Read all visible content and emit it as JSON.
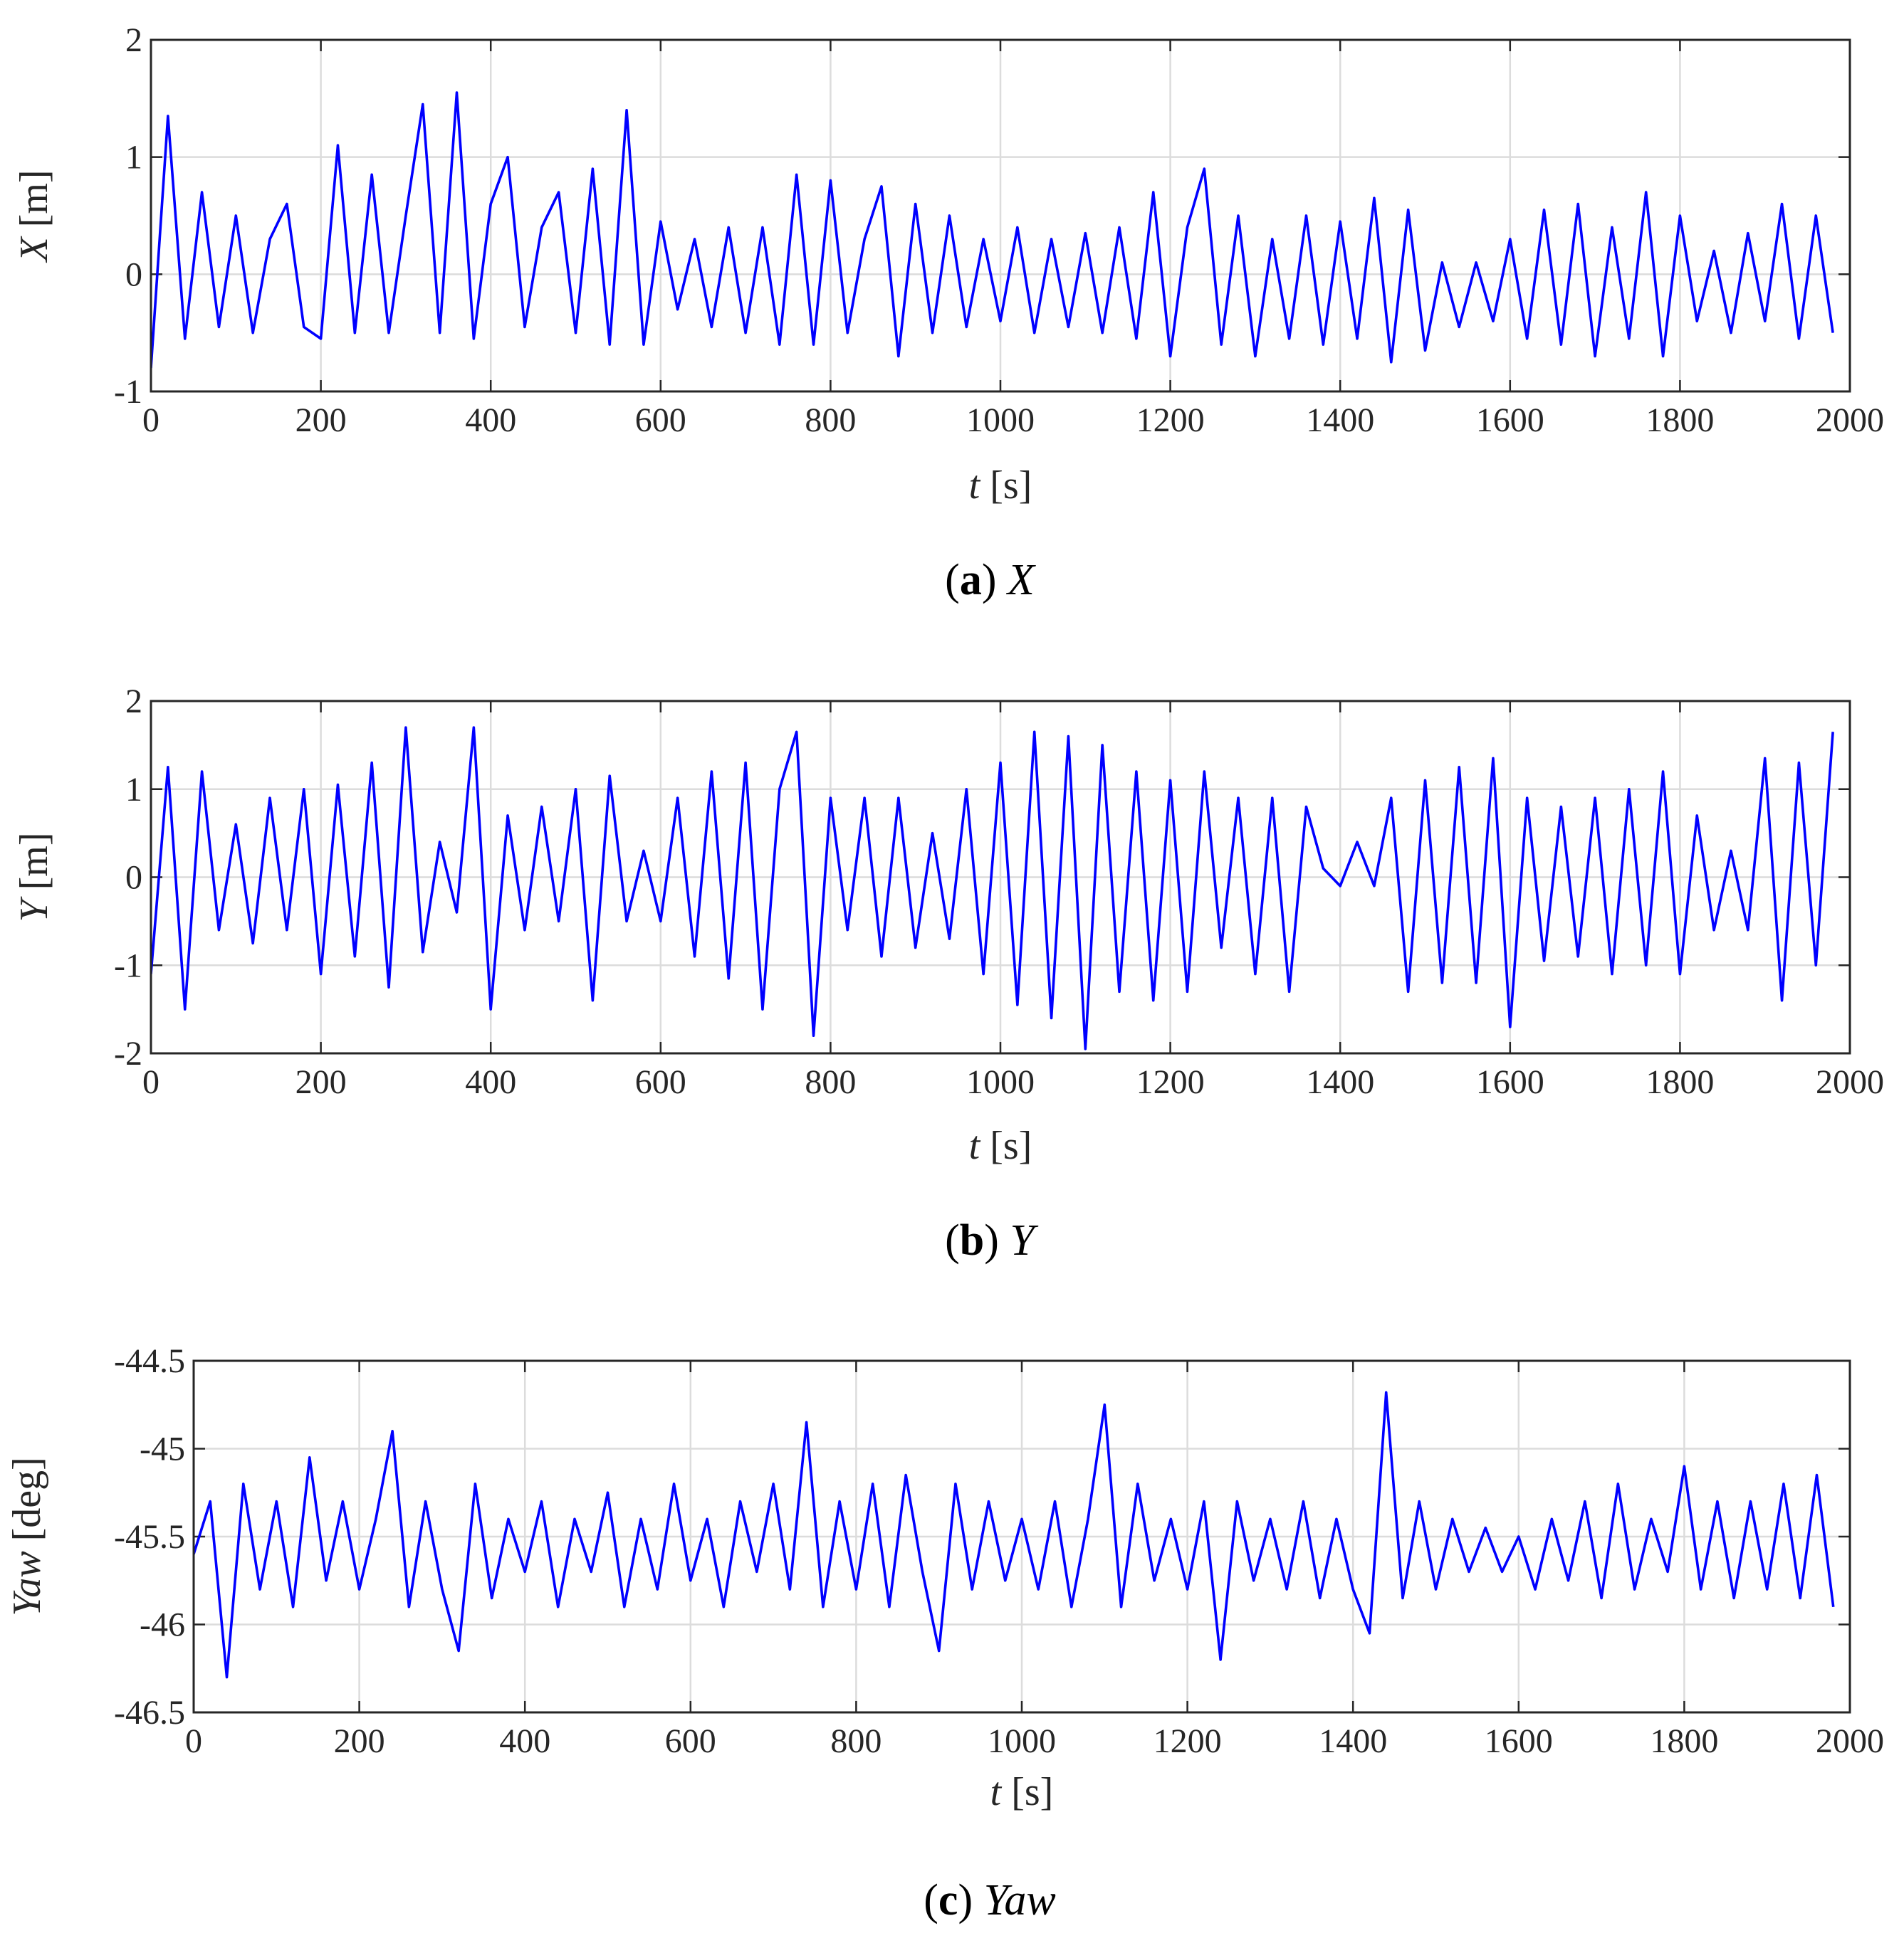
{
  "chart_data": [
    {
      "type": "line",
      "color": "#0000ff",
      "grid": true,
      "ylabel": [
        {
          "text": "X",
          "style": "italic"
        },
        {
          "text": " [m]",
          "style": "normal"
        }
      ],
      "xlabel": [
        {
          "text": "t",
          "style": "italic"
        },
        {
          "text": " [s]",
          "style": "normal"
        }
      ],
      "caption": [
        {
          "text": "(",
          "style": "normal"
        },
        {
          "text": "a",
          "style": "bold"
        },
        {
          "text": ") ",
          "style": "normal"
        },
        {
          "text": "X",
          "style": "italic"
        }
      ],
      "xlim": [
        0,
        2000
      ],
      "xticks": [
        0,
        200,
        400,
        600,
        800,
        1000,
        1200,
        1400,
        1600,
        1800,
        2000
      ],
      "ylim": [
        -1,
        2
      ],
      "yticks": [
        -1,
        0,
        1,
        2
      ],
      "x": [
        0,
        20,
        40,
        60,
        80,
        100,
        120,
        140,
        160,
        180,
        200,
        220,
        240,
        260,
        280,
        300,
        320,
        340,
        360,
        380,
        400,
        420,
        440,
        460,
        480,
        500,
        520,
        540,
        560,
        580,
        600,
        620,
        640,
        660,
        680,
        700,
        720,
        740,
        760,
        780,
        800,
        820,
        840,
        860,
        880,
        900,
        920,
        940,
        960,
        980,
        1000,
        1020,
        1040,
        1060,
        1080,
        1100,
        1120,
        1140,
        1160,
        1180,
        1200,
        1220,
        1240,
        1260,
        1280,
        1300,
        1320,
        1340,
        1360,
        1380,
        1400,
        1420,
        1440,
        1460,
        1480,
        1500,
        1520,
        1540,
        1560,
        1580,
        1600,
        1620,
        1640,
        1660,
        1680,
        1700,
        1720,
        1740,
        1760,
        1780,
        1800,
        1820,
        1840,
        1860,
        1880,
        1900,
        1920,
        1940,
        1960,
        1980
      ],
      "values": [
        -0.8,
        1.35,
        -0.55,
        0.7,
        -0.45,
        0.5,
        -0.5,
        0.3,
        0.6,
        -0.45,
        -0.55,
        1.1,
        -0.5,
        0.85,
        -0.5,
        0.5,
        1.45,
        -0.5,
        1.55,
        -0.55,
        0.6,
        1.0,
        -0.45,
        0.4,
        0.7,
        -0.5,
        0.9,
        -0.6,
        1.4,
        -0.6,
        0.45,
        -0.3,
        0.3,
        -0.45,
        0.4,
        -0.5,
        0.4,
        -0.6,
        0.85,
        -0.6,
        0.8,
        -0.5,
        0.3,
        0.75,
        -0.7,
        0.6,
        -0.5,
        0.5,
        -0.45,
        0.3,
        -0.4,
        0.4,
        -0.5,
        0.3,
        -0.45,
        0.35,
        -0.5,
        0.4,
        -0.55,
        0.7,
        -0.7,
        0.4,
        0.9,
        -0.6,
        0.5,
        -0.7,
        0.3,
        -0.55,
        0.5,
        -0.6,
        0.45,
        -0.55,
        0.65,
        -0.75,
        0.55,
        -0.65,
        0.1,
        -0.45,
        0.1,
        -0.4,
        0.3,
        -0.55,
        0.55,
        -0.6,
        0.6,
        -0.7,
        0.4,
        -0.55,
        0.7,
        -0.7,
        0.5,
        -0.4,
        0.2,
        -0.5,
        0.35,
        -0.4,
        0.6,
        -0.55,
        0.5,
        -0.5
      ]
    },
    {
      "type": "line",
      "color": "#0000ff",
      "grid": true,
      "ylabel": [
        {
          "text": "Y",
          "style": "italic"
        },
        {
          "text": " [m]",
          "style": "normal"
        }
      ],
      "xlabel": [
        {
          "text": "t",
          "style": "italic"
        },
        {
          "text": " [s]",
          "style": "normal"
        }
      ],
      "caption": [
        {
          "text": "(",
          "style": "normal"
        },
        {
          "text": "b",
          "style": "bold"
        },
        {
          "text": ") ",
          "style": "normal"
        },
        {
          "text": "Y",
          "style": "italic"
        }
      ],
      "xlim": [
        0,
        2000
      ],
      "xticks": [
        0,
        200,
        400,
        600,
        800,
        1000,
        1200,
        1400,
        1600,
        1800,
        2000
      ],
      "ylim": [
        -2,
        2
      ],
      "yticks": [
        -2,
        -1,
        0,
        1,
        2
      ],
      "x": [
        0,
        20,
        40,
        60,
        80,
        100,
        120,
        140,
        160,
        180,
        200,
        220,
        240,
        260,
        280,
        300,
        320,
        340,
        360,
        380,
        400,
        420,
        440,
        460,
        480,
        500,
        520,
        540,
        560,
        580,
        600,
        620,
        640,
        660,
        680,
        700,
        720,
        740,
        760,
        780,
        800,
        820,
        840,
        860,
        880,
        900,
        920,
        940,
        960,
        980,
        1000,
        1020,
        1040,
        1060,
        1080,
        1100,
        1120,
        1140,
        1160,
        1180,
        1200,
        1220,
        1240,
        1260,
        1280,
        1300,
        1320,
        1340,
        1360,
        1380,
        1400,
        1420,
        1440,
        1460,
        1480,
        1500,
        1520,
        1540,
        1560,
        1580,
        1600,
        1620,
        1640,
        1660,
        1680,
        1700,
        1720,
        1740,
        1760,
        1780,
        1800,
        1820,
        1840,
        1860,
        1880,
        1900,
        1920,
        1940,
        1960,
        1980
      ],
      "values": [
        -1.1,
        1.25,
        -1.5,
        1.2,
        -0.6,
        0.6,
        -0.75,
        0.9,
        -0.6,
        1.0,
        -1.1,
        1.05,
        -0.9,
        1.3,
        -1.25,
        1.7,
        -0.85,
        0.4,
        -0.4,
        1.7,
        -1.5,
        0.7,
        -0.6,
        0.8,
        -0.5,
        1.0,
        -1.4,
        1.15,
        -0.5,
        0.3,
        -0.5,
        0.9,
        -0.9,
        1.2,
        -1.15,
        1.3,
        -1.5,
        1.0,
        1.65,
        -1.8,
        0.9,
        -0.6,
        0.9,
        -0.9,
        0.9,
        -0.8,
        0.5,
        -0.7,
        1.0,
        -1.1,
        1.3,
        -1.45,
        1.65,
        -1.6,
        1.6,
        -1.95,
        1.5,
        -1.3,
        1.2,
        -1.4,
        1.1,
        -1.3,
        1.2,
        -0.8,
        0.9,
        -1.1,
        0.9,
        -1.3,
        0.8,
        0.1,
        -0.1,
        0.4,
        -0.1,
        0.9,
        -1.3,
        1.1,
        -1.2,
        1.25,
        -1.2,
        1.35,
        -1.7,
        0.9,
        -0.95,
        0.8,
        -0.9,
        0.9,
        -1.1,
        1.0,
        -1.0,
        1.2,
        -1.1,
        0.7,
        -0.6,
        0.3,
        -0.6,
        1.35,
        -1.4,
        1.3,
        -1.0,
        1.65
      ]
    },
    {
      "type": "line",
      "color": "#0000ff",
      "grid": true,
      "ylabel": [
        {
          "text": "Yaw",
          "style": "italic"
        },
        {
          "text": " [deg]",
          "style": "normal"
        }
      ],
      "xlabel": [
        {
          "text": "t",
          "style": "italic"
        },
        {
          "text": " [s]",
          "style": "normal"
        }
      ],
      "caption": [
        {
          "text": "(",
          "style": "normal"
        },
        {
          "text": "c",
          "style": "bold"
        },
        {
          "text": ") ",
          "style": "normal"
        },
        {
          "text": "Yaw",
          "style": "italic"
        }
      ],
      "xlim": [
        0,
        2000
      ],
      "xticks": [
        0,
        200,
        400,
        600,
        800,
        1000,
        1200,
        1400,
        1600,
        1800,
        2000
      ],
      "ylim": [
        -46.5,
        -44.5
      ],
      "yticks": [
        -46.5,
        -46,
        -45.5,
        -45,
        -44.5
      ],
      "x": [
        0,
        20,
        40,
        60,
        80,
        100,
        120,
        140,
        160,
        180,
        200,
        220,
        240,
        260,
        280,
        300,
        320,
        340,
        360,
        380,
        400,
        420,
        440,
        460,
        480,
        500,
        520,
        540,
        560,
        580,
        600,
        620,
        640,
        660,
        680,
        700,
        720,
        740,
        760,
        780,
        800,
        820,
        840,
        860,
        880,
        900,
        920,
        940,
        960,
        980,
        1000,
        1020,
        1040,
        1060,
        1080,
        1100,
        1120,
        1140,
        1160,
        1180,
        1200,
        1220,
        1240,
        1260,
        1280,
        1300,
        1320,
        1340,
        1360,
        1380,
        1400,
        1420,
        1440,
        1460,
        1480,
        1500,
        1520,
        1540,
        1560,
        1580,
        1600,
        1620,
        1640,
        1660,
        1680,
        1700,
        1720,
        1740,
        1760,
        1780,
        1800,
        1820,
        1840,
        1860,
        1880,
        1900,
        1920,
        1940,
        1960,
        1980
      ],
      "values": [
        -45.6,
        -45.3,
        -46.3,
        -45.2,
        -45.8,
        -45.3,
        -45.9,
        -45.05,
        -45.75,
        -45.3,
        -45.8,
        -45.4,
        -44.9,
        -45.9,
        -45.3,
        -45.8,
        -46.15,
        -45.2,
        -45.85,
        -45.4,
        -45.7,
        -45.3,
        -45.9,
        -45.4,
        -45.7,
        -45.25,
        -45.9,
        -45.4,
        -45.8,
        -45.2,
        -45.75,
        -45.4,
        -45.9,
        -45.3,
        -45.7,
        -45.2,
        -45.8,
        -44.85,
        -45.9,
        -45.3,
        -45.8,
        -45.2,
        -45.9,
        -45.15,
        -45.7,
        -46.15,
        -45.2,
        -45.8,
        -45.3,
        -45.75,
        -45.4,
        -45.8,
        -45.3,
        -45.9,
        -45.4,
        -44.75,
        -45.9,
        -45.2,
        -45.75,
        -45.4,
        -45.8,
        -45.3,
        -46.2,
        -45.3,
        -45.75,
        -45.4,
        -45.8,
        -45.3,
        -45.85,
        -45.4,
        -45.8,
        -46.05,
        -44.68,
        -45.85,
        -45.3,
        -45.8,
        -45.4,
        -45.7,
        -45.45,
        -45.7,
        -45.5,
        -45.8,
        -45.4,
        -45.75,
        -45.3,
        -45.85,
        -45.2,
        -45.8,
        -45.4,
        -45.7,
        -45.1,
        -45.8,
        -45.3,
        -45.85,
        -45.3,
        -45.8,
        -45.2,
        -45.85,
        -45.15,
        -45.9
      ]
    }
  ]
}
